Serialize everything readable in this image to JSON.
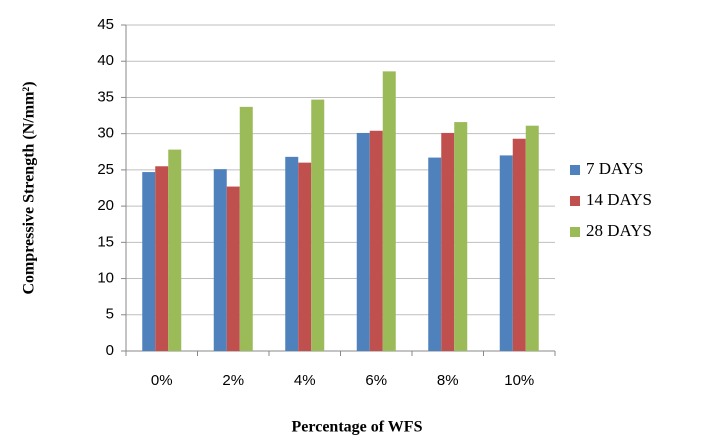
{
  "chart_data": {
    "type": "bar",
    "x_label": "Percentage of WFS",
    "y_label": "Compressive Strength (N/mm²)",
    "categories": [
      "0%",
      "2%",
      "4%",
      "6%",
      "8%",
      "10%"
    ],
    "series": [
      {
        "name": "7 DAYS",
        "color": "#4f81bd",
        "values": [
          24.7,
          25.1,
          26.8,
          30.1,
          26.7,
          27.0
        ]
      },
      {
        "name": "14 DAYS",
        "color": "#c0504d",
        "values": [
          25.5,
          22.7,
          26.0,
          30.4,
          30.1,
          29.3
        ]
      },
      {
        "name": "28 DAYS",
        "color": "#9bbb59",
        "values": [
          27.8,
          33.7,
          34.7,
          38.6,
          31.6,
          31.1
        ]
      }
    ],
    "ylim": [
      0,
      45
    ],
    "yticks": [
      0,
      5,
      10,
      15,
      20,
      25,
      30,
      35,
      40,
      45
    ],
    "grid": true,
    "legend": "right"
  }
}
